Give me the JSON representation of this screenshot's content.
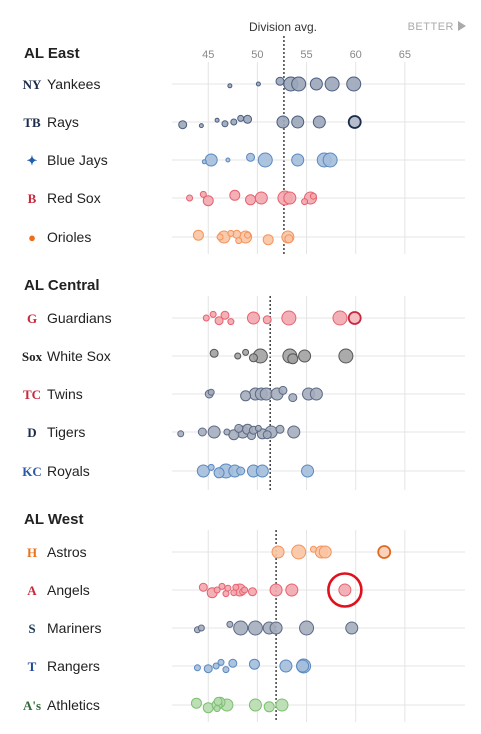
{
  "header": {
    "avg_label": "Division avg.",
    "better_label": "BETTER"
  },
  "chart_data": {
    "type": "scatter",
    "x_ticks": [
      45,
      50,
      55,
      60,
      65
    ],
    "xlim": [
      40,
      68
    ],
    "colors": {
      "grid": "#e4e4e4",
      "navy": "#4a5d80",
      "slate": "#5c6a85",
      "blue": "#5a88c0",
      "red": "#e8616e",
      "orange": "#f5935a",
      "darkred": "#c8283c",
      "darkgray": "#555555",
      "green": "#7cc070",
      "highlight": "#e0101c"
    },
    "divisions": [
      {
        "name": "AL East",
        "avg": 52.7,
        "teams": [
          {
            "name": "Yankees",
            "logo": "yankees-logo",
            "color": "#4a5d80",
            "points": [
              [
                47.2,
                2
              ],
              [
                50.1,
                2
              ],
              [
                52.3,
                4
              ],
              [
                53.4,
                7
              ],
              [
                54.2,
                7
              ],
              [
                56.0,
                6
              ],
              [
                57.6,
                7
              ],
              [
                59.8,
                7
              ]
            ]
          },
          {
            "name": "Rays",
            "logo": "rays-logo",
            "color": "#4a5d80",
            "points": [
              [
                42.4,
                4
              ],
              [
                44.3,
                2
              ],
              [
                45.9,
                2
              ],
              [
                46.7,
                3
              ],
              [
                47.6,
                3
              ],
              [
                48.3,
                3
              ],
              [
                49.0,
                4
              ],
              [
                52.6,
                6
              ],
              [
                54.1,
                6
              ],
              [
                56.3,
                6
              ],
              [
                59.9,
                6
              ]
            ],
            "emphasis": [
              10
            ]
          },
          {
            "name": "Blue Jays",
            "logo": "blue-jays-logo",
            "color": "#5a88c0",
            "points": [
              [
                44.6,
                2
              ],
              [
                45.3,
                6
              ],
              [
                47.0,
                2
              ],
              [
                49.3,
                4
              ],
              [
                50.8,
                7
              ],
              [
                54.1,
                6
              ],
              [
                56.8,
                7
              ],
              [
                57.4,
                7
              ]
            ]
          },
          {
            "name": "Red Sox",
            "logo": "red-sox-logo",
            "color": "#e8616e",
            "points": [
              [
                43.1,
                3
              ],
              [
                44.5,
                3
              ],
              [
                45.0,
                5
              ],
              [
                47.7,
                5
              ],
              [
                49.3,
                5
              ],
              [
                50.4,
                6
              ],
              [
                52.8,
                7
              ],
              [
                53.3,
                6
              ],
              [
                54.8,
                3
              ],
              [
                55.4,
                6
              ],
              [
                55.7,
                3
              ]
            ]
          },
          {
            "name": "Orioles",
            "logo": "orioles-logo",
            "color": "#f5935a",
            "points": [
              [
                44.0,
                5
              ],
              [
                46.2,
                3
              ],
              [
                46.6,
                6
              ],
              [
                47.3,
                3
              ],
              [
                47.9,
                4
              ],
              [
                48.1,
                3
              ],
              [
                48.8,
                6
              ],
              [
                49.0,
                3
              ],
              [
                51.1,
                5
              ],
              [
                53.1,
                6
              ],
              [
                53.2,
                4
              ]
            ]
          }
        ]
      },
      {
        "name": "AL Central",
        "avg": 51.3,
        "teams": [
          {
            "name": "Guardians",
            "logo": "guardians-logo",
            "color": "#e8616e",
            "points": [
              [
                44.8,
                3
              ],
              [
                45.5,
                3
              ],
              [
                46.1,
                4
              ],
              [
                46.7,
                4
              ],
              [
                47.3,
                3
              ],
              [
                49.6,
                6
              ],
              [
                51.0,
                4
              ],
              [
                53.2,
                7
              ],
              [
                58.4,
                7
              ],
              [
                59.9,
                6
              ]
            ],
            "emphasis": [
              9
            ]
          },
          {
            "name": "White Sox",
            "logo": "white-sox-logo",
            "color": "#555555",
            "points": [
              [
                45.6,
                4
              ],
              [
                48.0,
                3
              ],
              [
                48.8,
                3
              ],
              [
                49.6,
                4
              ],
              [
                50.3,
                7
              ],
              [
                53.3,
                7
              ],
              [
                53.6,
                5
              ],
              [
                54.8,
                6
              ],
              [
                59.0,
                7
              ]
            ]
          },
          {
            "name": "Twins",
            "logo": "twins-logo",
            "color": "#5c6a85",
            "points": [
              [
                45.1,
                4
              ],
              [
                45.3,
                3
              ],
              [
                48.8,
                5
              ],
              [
                49.8,
                6
              ],
              [
                50.4,
                6
              ],
              [
                50.9,
                6
              ],
              [
                52.0,
                6
              ],
              [
                52.6,
                4
              ],
              [
                53.6,
                4
              ],
              [
                55.2,
                6
              ],
              [
                56.0,
                6
              ]
            ]
          },
          {
            "name": "Tigers",
            "logo": "tigers-logo",
            "color": "#5c6a85",
            "points": [
              [
                42.2,
                3
              ],
              [
                44.4,
                4
              ],
              [
                45.6,
                6
              ],
              [
                46.9,
                3
              ],
              [
                47.6,
                5
              ],
              [
                48.1,
                4
              ],
              [
                48.5,
                6
              ],
              [
                49.0,
                5
              ],
              [
                49.4,
                4
              ],
              [
                49.6,
                4
              ],
              [
                50.1,
                3
              ],
              [
                50.5,
                5
              ],
              [
                51.0,
                4
              ],
              [
                51.4,
                6
              ],
              [
                52.3,
                4
              ],
              [
                53.7,
                6
              ]
            ]
          },
          {
            "name": "Royals",
            "logo": "royals-logo",
            "color": "#5a88c0",
            "points": [
              [
                44.5,
                6
              ],
              [
                45.3,
                3
              ],
              [
                46.1,
                5
              ],
              [
                46.8,
                7
              ],
              [
                47.7,
                6
              ],
              [
                48.3,
                4
              ],
              [
                49.6,
                6
              ],
              [
                50.5,
                6
              ],
              [
                55.1,
                6
              ]
            ]
          }
        ]
      },
      {
        "name": "AL West",
        "avg": 51.9,
        "teams": [
          {
            "name": "Astros",
            "logo": "astros-logo",
            "color": "#f5935a",
            "points": [
              [
                52.1,
                6
              ],
              [
                54.2,
                7
              ],
              [
                55.7,
                3
              ],
              [
                56.5,
                6
              ],
              [
                56.9,
                6
              ],
              [
                62.9,
                6
              ]
            ],
            "emphasis": [
              5
            ]
          },
          {
            "name": "Angels",
            "logo": "angels-logo",
            "color": "#e8616e",
            "points": [
              [
                44.5,
                4
              ],
              [
                45.4,
                5
              ],
              [
                45.9,
                3
              ],
              [
                46.4,
                3
              ],
              [
                46.8,
                3
              ],
              [
                47.0,
                3
              ],
              [
                47.6,
                3
              ],
              [
                47.8,
                3
              ],
              [
                48.2,
                6
              ],
              [
                48.5,
                3
              ],
              [
                48.7,
                3
              ],
              [
                49.5,
                4
              ],
              [
                51.9,
                6
              ],
              [
                53.5,
                6
              ],
              [
                58.9,
                6
              ]
            ],
            "highlight": 14
          },
          {
            "name": "Mariners",
            "logo": "mariners-logo",
            "color": "#5c6a85",
            "points": [
              [
                43.9,
                3
              ],
              [
                44.3,
                3
              ],
              [
                47.2,
                3
              ],
              [
                48.3,
                7
              ],
              [
                49.8,
                7
              ],
              [
                51.2,
                6
              ],
              [
                51.9,
                6
              ],
              [
                55.0,
                7
              ],
              [
                59.6,
                6
              ]
            ]
          },
          {
            "name": "Rangers",
            "logo": "rangers-logo",
            "color": "#5a88c0",
            "points": [
              [
                43.9,
                3
              ],
              [
                45.0,
                4
              ],
              [
                45.8,
                3
              ],
              [
                46.3,
                3
              ],
              [
                46.8,
                3
              ],
              [
                47.5,
                4
              ],
              [
                49.7,
                5
              ],
              [
                52.9,
                6
              ],
              [
                54.6,
                6
              ],
              [
                54.7,
                7
              ]
            ]
          },
          {
            "name": "Athletics",
            "logo": "athletics-logo",
            "color": "#7cc070",
            "points": [
              [
                43.8,
                5
              ],
              [
                45.0,
                5
              ],
              [
                45.9,
                3
              ],
              [
                46.2,
                5
              ],
              [
                46.9,
                6
              ],
              [
                49.8,
                6
              ],
              [
                51.2,
                5
              ],
              [
                52.5,
                6
              ],
              [
                45.9,
                5
              ],
              [
                46.0,
                4
              ]
            ]
          }
        ]
      }
    ]
  }
}
